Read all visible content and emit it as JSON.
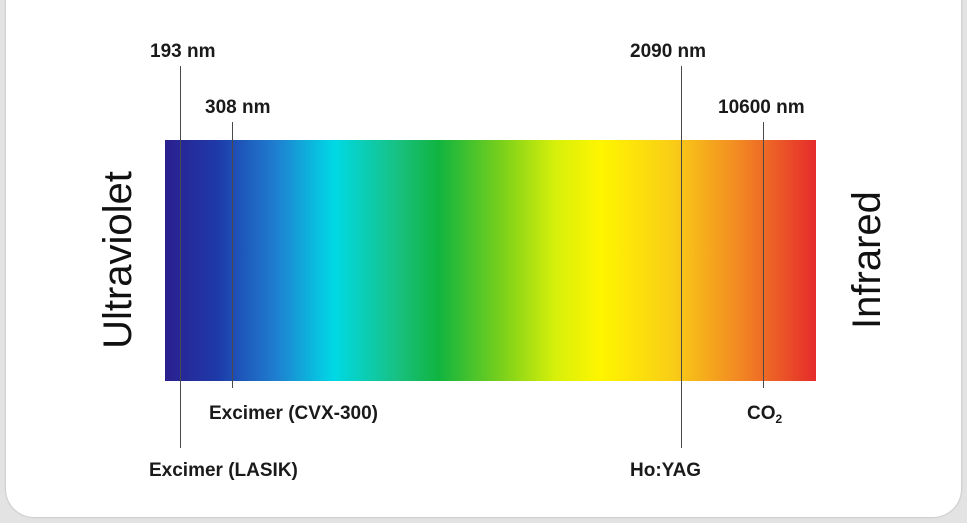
{
  "sides": {
    "left": "Ultraviolet",
    "right": "Infrared"
  },
  "wavelengths": {
    "w193": "193 nm",
    "w308": "308 nm",
    "w2090": "2090 nm",
    "w10600": "10600 nm"
  },
  "lasers": {
    "excimer_lasik": "Excimer (LASIK)",
    "excimer_cvx": "Excimer (CVX-300)",
    "hoyag": "Ho:YAG",
    "co2_main": "CO",
    "co2_sub": "2"
  }
}
